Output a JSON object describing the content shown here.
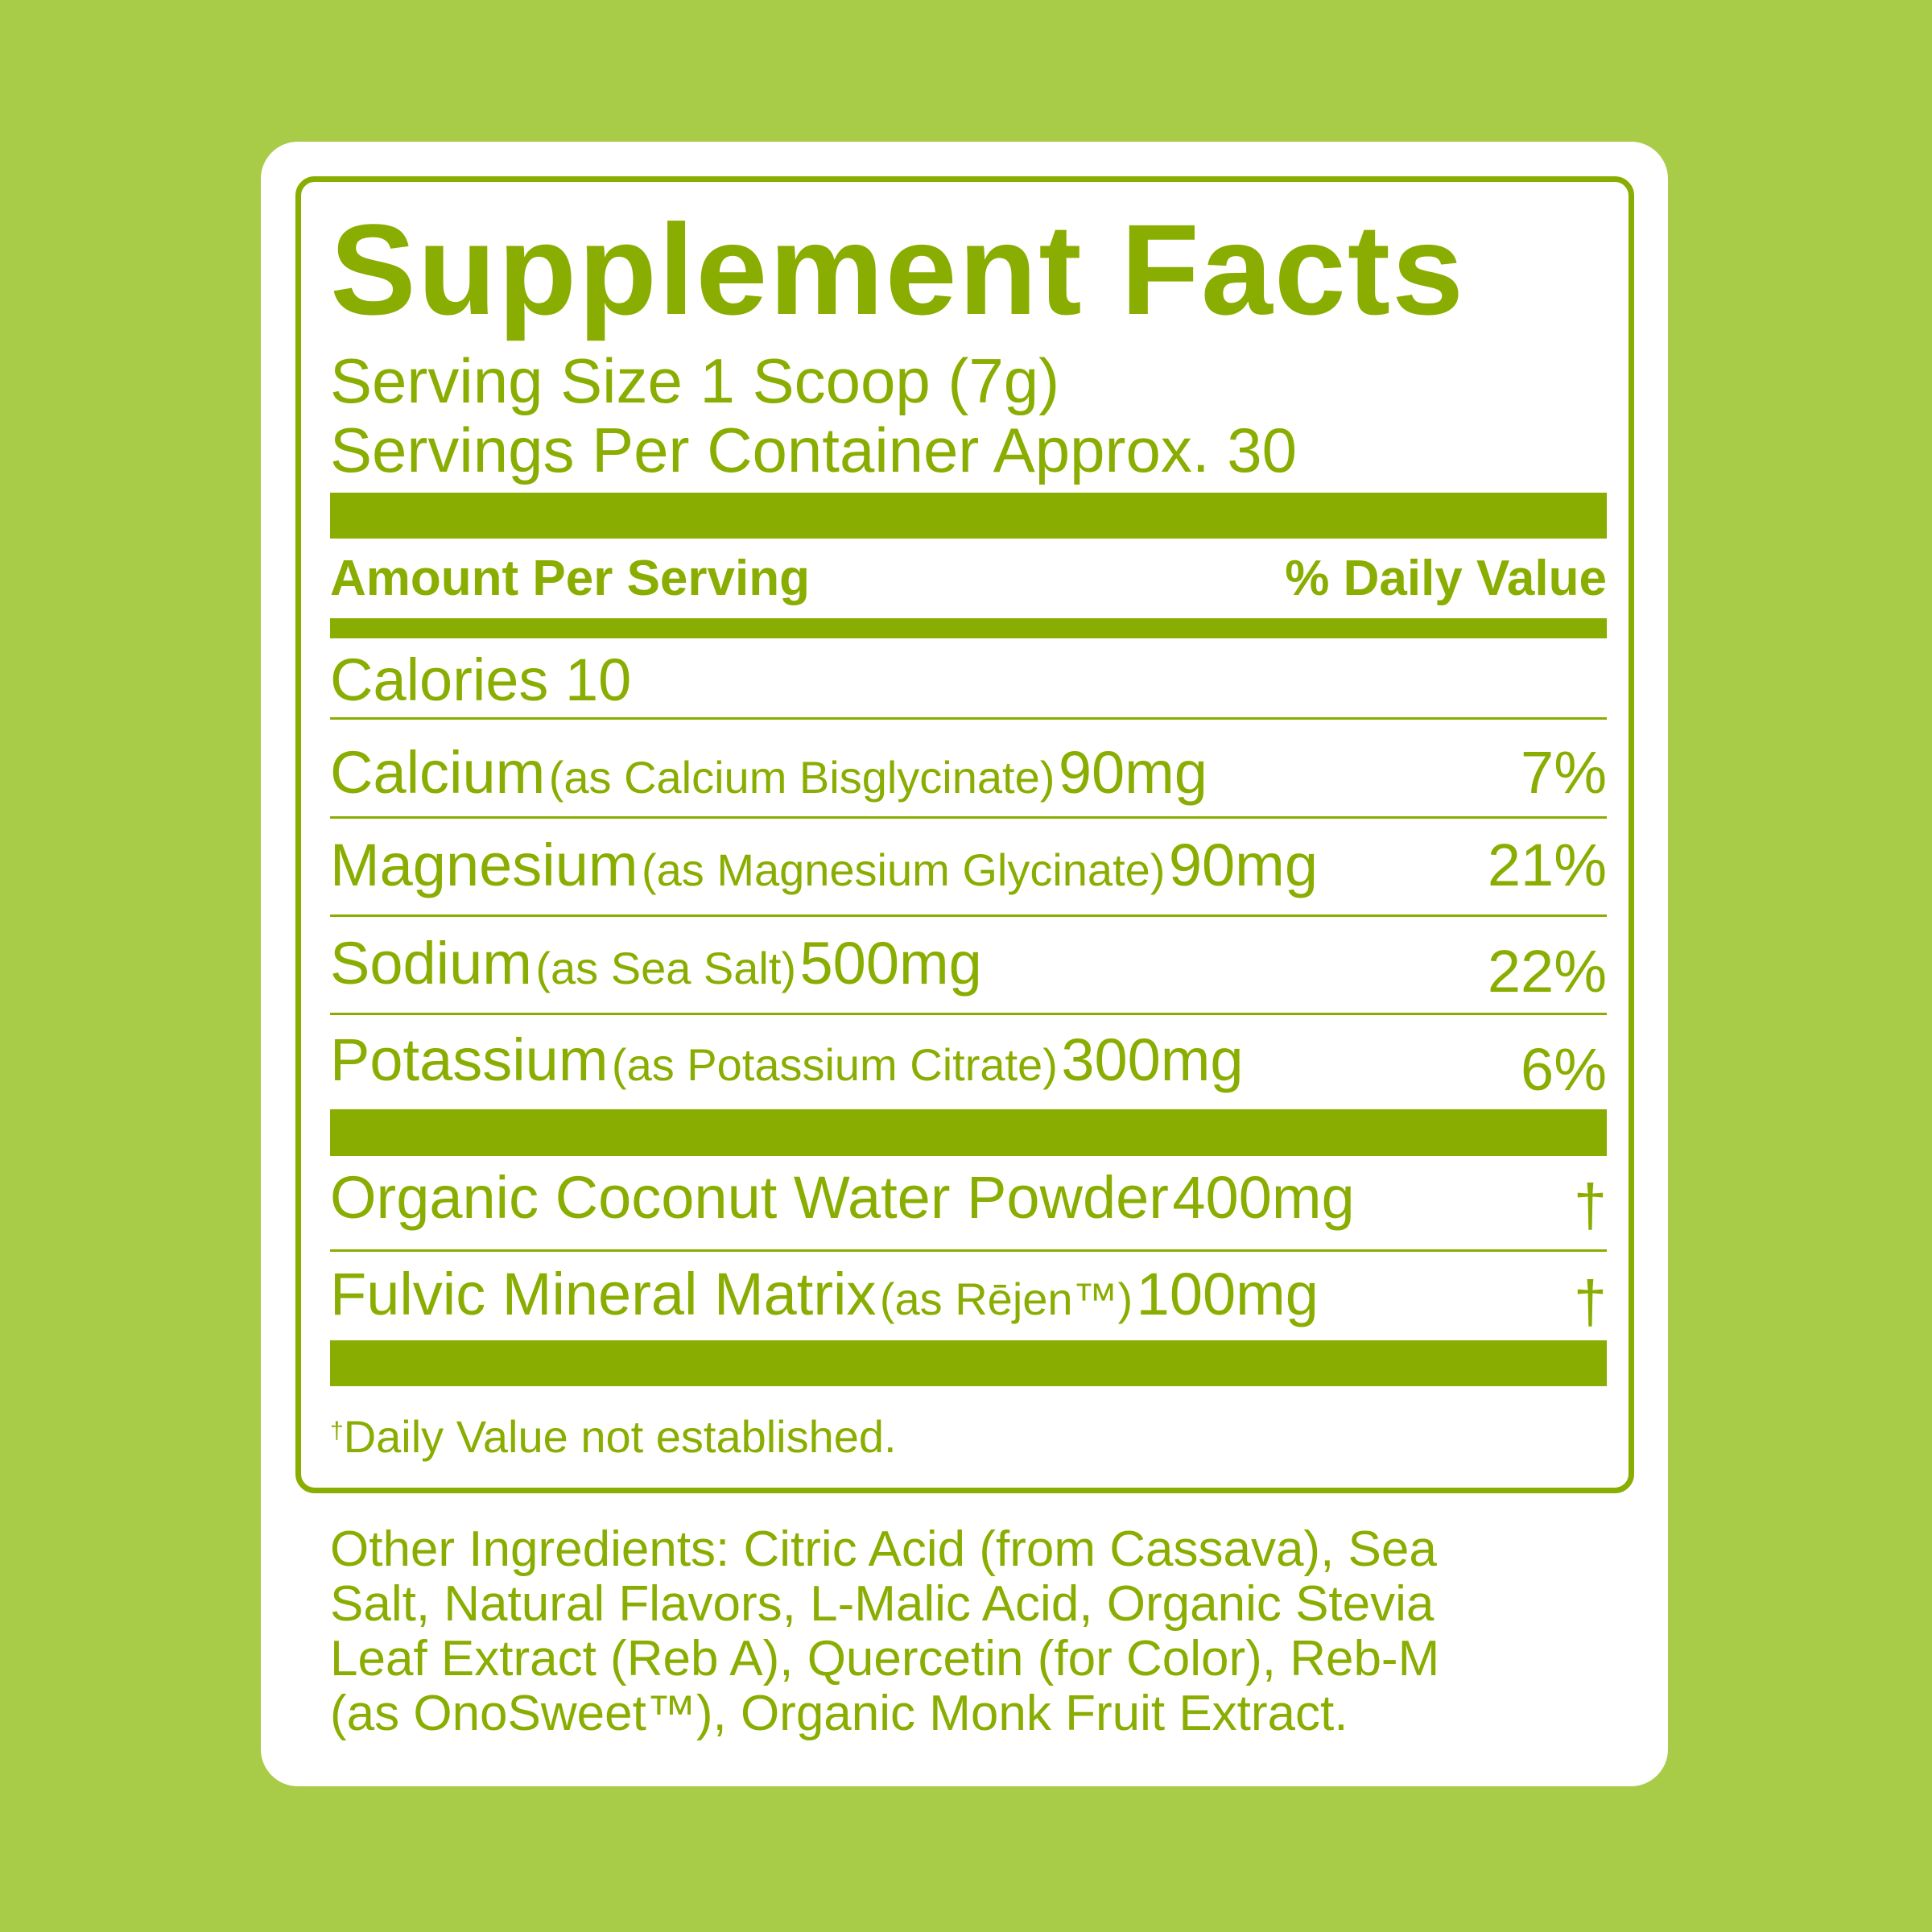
{
  "title": "Supplement Facts",
  "serving_size": "Serving Size 1 Scoop (7g)",
  "servings_per_container": "Servings Per Container Approx. 30",
  "header": {
    "amount": "Amount Per Serving",
    "daily_value": "% Daily Value"
  },
  "calories": "Calories 10",
  "nutrients": [
    {
      "name": "Calcium",
      "source": "(as Calcium Bisglycinate)",
      "amount": "90mg",
      "dv": "7%"
    },
    {
      "name": "Magnesium",
      "source": "(as Magnesium Glycinate)",
      "amount": "90mg",
      "dv": "21%"
    },
    {
      "name": "Sodium",
      "source": "(as Sea Salt)",
      "amount": "500mg",
      "dv": "22%"
    },
    {
      "name": "Potassium",
      "source": "(as Potassium Citrate)",
      "amount": "300mg",
      "dv": "6%"
    }
  ],
  "other_nutrients": [
    {
      "name": "Organic Coconut Water Powder",
      "source": "",
      "amount": "400mg",
      "dv": "†"
    },
    {
      "name": "Fulvic Mineral Matrix",
      "source": "(as Rējen™)",
      "amount": "100mg",
      "dv": "†"
    }
  ],
  "footnote": {
    "mark": "†",
    "text": "Daily Value not established."
  },
  "other_ingredients": [
    "Other Ingredients: Citric Acid (from Cassava), Sea",
    "Salt, Natural Flavors, L-Malic Acid, Organic Stevia",
    "Leaf Extract (Reb A), Quercetin (for Color), Reb-M",
    "(as OnoSweet™), Organic Monk Fruit Extract."
  ],
  "colors": {
    "background": "#a8cc48",
    "accent": "#89ad00",
    "panel": "#ffffff"
  }
}
